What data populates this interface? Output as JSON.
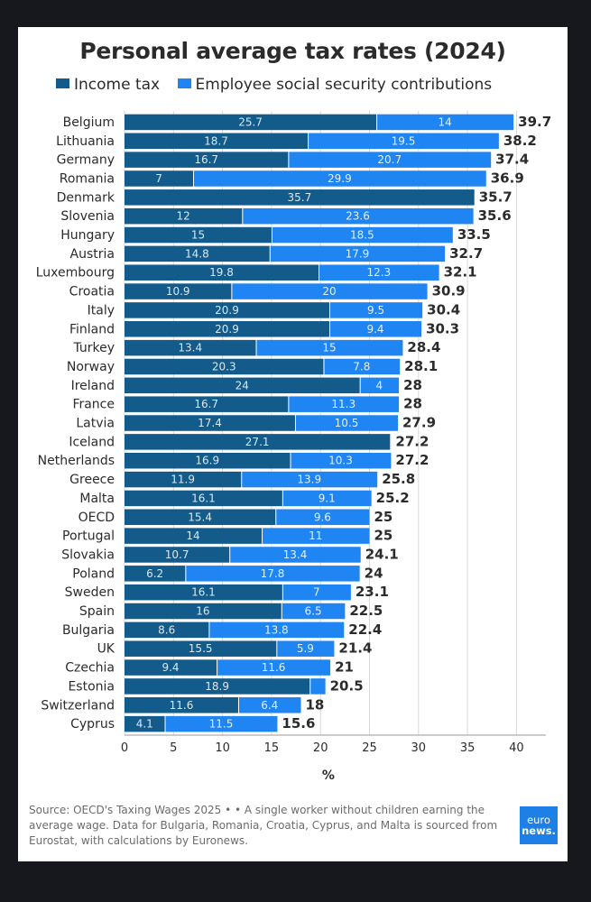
{
  "colors": {
    "income": "#125b8a",
    "social": "#1f85f3",
    "text": "#2b2b2b",
    "grid": "#d9d9d9"
  },
  "source": "Source: OECD's Taxing Wages 2025 • • A single worker without children earning the average wage. Data for Bulgaria, Romania, Croatia, Cyprus, and Malta is sourced from Eurostat, with calculations by Euronews.",
  "logo": {
    "line1": "euro",
    "line2": "news."
  },
  "chart_data": {
    "type": "bar",
    "orientation": "horizontal",
    "stacked": true,
    "title": "Personal average tax rates (2024)",
    "xlabel": "%",
    "ylabel": "",
    "xlim": [
      0,
      43
    ],
    "xticks": [
      0,
      5,
      10,
      15,
      20,
      25,
      30,
      35,
      40
    ],
    "grid": true,
    "legend_position": "top",
    "categories": [
      "Belgium",
      "Lithuania",
      "Germany",
      "Romania",
      "Denmark",
      "Slovenia",
      "Hungary",
      "Austria",
      "Luxembourg",
      "Croatia",
      "Italy",
      "Finland",
      "Turkey",
      "Norway",
      "Ireland",
      "France",
      "Latvia",
      "Iceland",
      "Netherlands",
      "Greece",
      "Malta",
      "OECD",
      "Portugal",
      "Slovakia",
      "Poland",
      "Sweden",
      "Spain",
      "Bulgaria",
      "UK",
      "Czechia",
      "Estonia",
      "Switzerland",
      "Cyprus"
    ],
    "series": [
      {
        "name": "Income tax",
        "values": [
          25.7,
          18.7,
          16.7,
          7,
          35.7,
          12,
          15,
          14.8,
          19.8,
          10.9,
          20.9,
          20.9,
          13.4,
          20.3,
          24,
          16.7,
          17.4,
          27.1,
          16.9,
          11.9,
          16.1,
          15.4,
          14,
          10.7,
          6.2,
          16.1,
          16,
          8.6,
          15.5,
          9.4,
          18.9,
          11.6,
          4.1
        ]
      },
      {
        "name": "Employee social security contributions",
        "values": [
          14,
          19.5,
          20.7,
          29.9,
          0,
          23.6,
          18.5,
          17.9,
          12.3,
          20,
          9.5,
          9.4,
          15,
          7.8,
          4,
          11.3,
          10.5,
          0.1,
          10.3,
          13.9,
          9.1,
          9.6,
          11,
          13.4,
          17.8,
          7,
          6.5,
          13.8,
          5.9,
          11.6,
          1.6,
          6.4,
          11.5
        ]
      }
    ],
    "totals": [
      "39.7",
      "38.2",
      "37.4",
      "36.9",
      "35.7",
      "35.6",
      "33.5",
      "32.7",
      "32.1",
      "30.9",
      "30.4",
      "30.3",
      "28.4",
      "28.1",
      "28",
      "28",
      "27.9",
      "27.2",
      "27.2",
      "25.8",
      "25.2",
      "25",
      "25",
      "24.1",
      "24",
      "23.1",
      "22.5",
      "22.4",
      "21.4",
      "21",
      "20.5",
      "18",
      "15.6"
    ],
    "income_labels": [
      "25.7",
      "18.7",
      "16.7",
      "7",
      "35.7",
      "12",
      "15",
      "14.8",
      "19.8",
      "10.9",
      "20.9",
      "20.9",
      "13.4",
      "20.3",
      "24",
      "16.7",
      "17.4",
      "27.1",
      "16.9",
      "11.9",
      "16.1",
      "15.4",
      "14",
      "10.7",
      "6.2",
      "16.1",
      "16",
      "8.6",
      "15.5",
      "9.4",
      "18.9",
      "11.6",
      "4.1"
    ],
    "social_labels": [
      "14",
      "19.5",
      "20.7",
      "29.9",
      "",
      "23.6",
      "18.5",
      "17.9",
      "12.3",
      "20",
      "9.5",
      "9.4",
      "15",
      "7.8",
      "4",
      "11.3",
      "10.5",
      "",
      "10.3",
      "13.9",
      "9.1",
      "9.6",
      "11",
      "13.4",
      "17.8",
      "7",
      "6.5",
      "13.8",
      "5.9",
      "11.6",
      "",
      "6.4",
      "11.5"
    ]
  }
}
